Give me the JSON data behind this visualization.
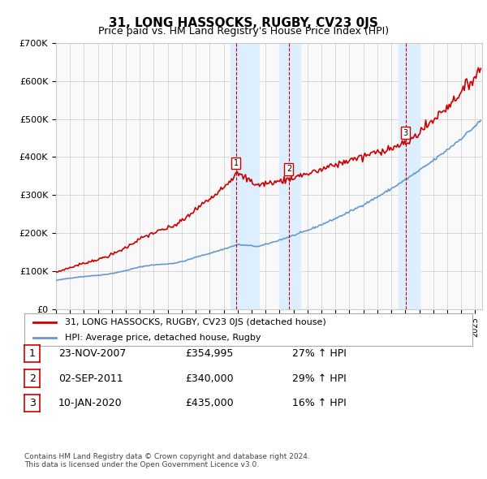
{
  "title": "31, LONG HASSOCKS, RUGBY, CV23 0JS",
  "subtitle": "Price paid vs. HM Land Registry's House Price Index (HPI)",
  "ylabel_ticks": [
    "£0",
    "£100K",
    "£200K",
    "£300K",
    "£400K",
    "£500K",
    "£600K",
    "£700K"
  ],
  "ytick_values": [
    0,
    100000,
    200000,
    300000,
    400000,
    500000,
    600000,
    700000
  ],
  "ylim": [
    0,
    700000
  ],
  "xlim_start": 1995.0,
  "xlim_end": 2025.5,
  "sale_dates": [
    2007.896,
    2011.669,
    2020.03
  ],
  "sale_prices": [
    354995,
    340000,
    435000
  ],
  "sale_labels": [
    "1",
    "2",
    "3"
  ],
  "legend_label_red": "31, LONG HASSOCKS, RUGBY, CV23 0JS (detached house)",
  "legend_label_blue": "HPI: Average price, detached house, Rugby",
  "table_data": [
    [
      "1",
      "23-NOV-2007",
      "£354,995",
      "27% ↑ HPI"
    ],
    [
      "2",
      "02-SEP-2011",
      "£340,000",
      "29% ↑ HPI"
    ],
    [
      "3",
      "10-JAN-2020",
      "£435,000",
      "16% ↑ HPI"
    ]
  ],
  "footnote": "Contains HM Land Registry data © Crown copyright and database right 2024.\nThis data is licensed under the Open Government Licence v3.0.",
  "red_color": "#cc0000",
  "blue_color": "#6699cc",
  "shading_color": "#ddeeff",
  "vline_color": "#cc0000",
  "grid_color": "#cccccc",
  "background_color": "#ffffff",
  "plot_bg_color": "#f9f9f9"
}
